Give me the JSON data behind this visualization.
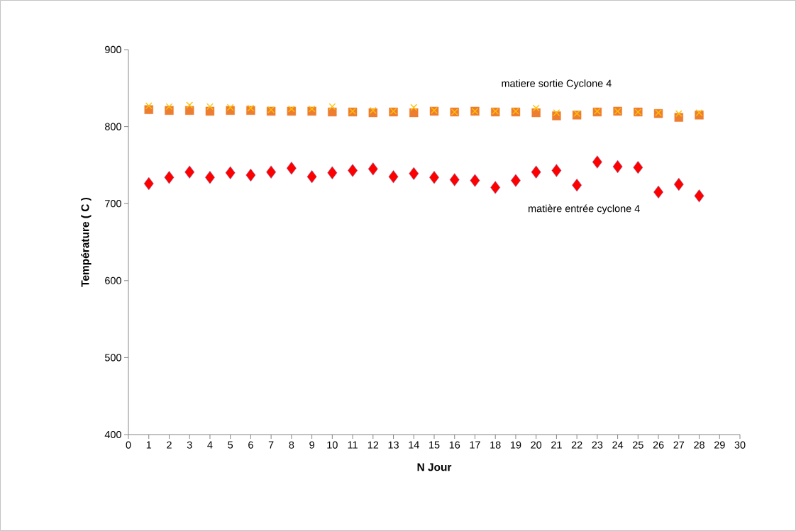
{
  "chart_data": {
    "type": "scatter",
    "xlabel": "N Jour",
    "ylabel": "Température ( C )",
    "x": [
      1,
      2,
      3,
      4,
      5,
      6,
      7,
      8,
      9,
      10,
      11,
      12,
      13,
      14,
      15,
      16,
      17,
      18,
      19,
      20,
      21,
      22,
      23,
      24,
      25,
      26,
      27,
      28
    ],
    "xlim": [
      0,
      30
    ],
    "xticks": [
      0,
      1,
      2,
      3,
      4,
      5,
      6,
      7,
      8,
      9,
      10,
      11,
      12,
      13,
      14,
      15,
      16,
      17,
      18,
      19,
      20,
      21,
      22,
      23,
      24,
      25,
      26,
      27,
      28,
      29,
      30
    ],
    "ylim": [
      400,
      900
    ],
    "yticks": [
      400,
      500,
      600,
      700,
      800,
      900
    ],
    "grid": false,
    "series": [
      {
        "name": "matiere sortie Cyclone 4",
        "color": "#ed7d31",
        "marker": "square",
        "values": [
          822,
          821,
          821,
          820,
          821,
          821,
          820,
          820,
          820,
          819,
          819,
          818,
          819,
          818,
          820,
          819,
          820,
          819,
          819,
          818,
          814,
          815,
          819,
          820,
          819,
          817,
          812,
          815
        ]
      },
      {
        "color": "#ffc000",
        "marker": "cross",
        "values": [
          827,
          826,
          828,
          826,
          825,
          824,
          822,
          823,
          823,
          826,
          820,
          821,
          820,
          825,
          821,
          819,
          820,
          820,
          820,
          824,
          818,
          817,
          820,
          820,
          819,
          818,
          817,
          818
        ]
      },
      {
        "name": "matière entrée cyclone 4",
        "color": "#ff0000",
        "marker": "diamond",
        "values": [
          726,
          734,
          741,
          734,
          740,
          737,
          741,
          746,
          735,
          740,
          743,
          745,
          735,
          739,
          734,
          731,
          730,
          721,
          730,
          741,
          743,
          724,
          754,
          748,
          747,
          715,
          725,
          710
        ]
      }
    ]
  }
}
